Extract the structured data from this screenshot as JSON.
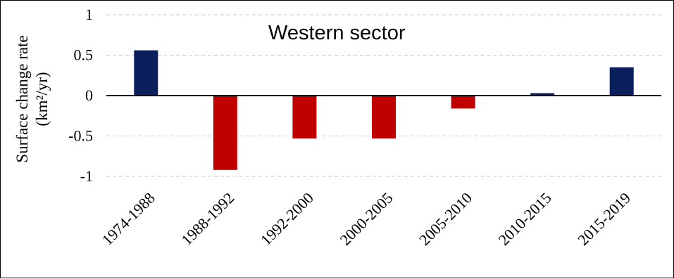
{
  "chart_data": {
    "type": "bar",
    "title": "Western sector",
    "ylabel_line1": "Surface change rate",
    "ylabel_line2": "(km²/yr)",
    "xlabel": "",
    "categories": [
      "1974-1988",
      "1988-1992",
      "1992-2000",
      "2000-2005",
      "2005-2010",
      "2010-2015",
      "2015-2019"
    ],
    "values": [
      0.56,
      -0.92,
      -0.53,
      -0.53,
      -0.16,
      0.03,
      0.35
    ],
    "ylim": [
      -1,
      1
    ],
    "yticks": [
      1,
      0.5,
      0,
      -0.5,
      -1
    ],
    "ytick_labels": [
      "1",
      "0.5",
      "0",
      "-0.5",
      "-1"
    ],
    "grid": "horizontal dashed",
    "legend": "none",
    "colors": {
      "positive": "#0b1f5c",
      "negative": "#c00000",
      "zero_line": "#000000",
      "grid": "#c8c8c8"
    }
  }
}
